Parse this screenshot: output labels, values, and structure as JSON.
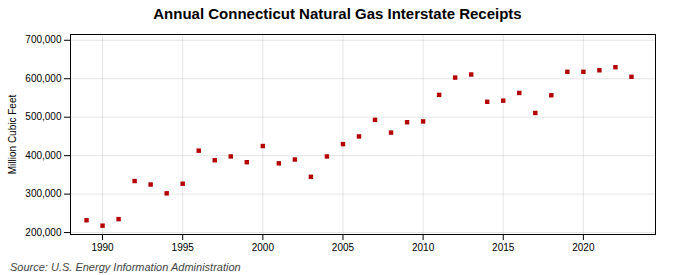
{
  "chart_data": {
    "type": "scatter",
    "title": "Annual Connecticut Natural Gas Interstate Receipts",
    "ylabel": "Million Cubic Feet",
    "annotations": [
      "Source: U.S. Energy Information Administration"
    ],
    "x": [
      1989,
      1990,
      1991,
      1992,
      1993,
      1994,
      1995,
      1996,
      1997,
      1998,
      1999,
      2000,
      2001,
      2002,
      2003,
      2004,
      2005,
      2006,
      2007,
      2008,
      2009,
      2010,
      2011,
      2012,
      2013,
      2014,
      2015,
      2016,
      2017,
      2018,
      2019,
      2020,
      2021,
      2022,
      2023
    ],
    "values": [
      232000,
      218000,
      235000,
      334000,
      325000,
      302000,
      327000,
      413000,
      388000,
      398000,
      383000,
      425000,
      380000,
      390000,
      345000,
      398000,
      430000,
      450000,
      493000,
      460000,
      487000,
      489000,
      558000,
      603000,
      611000,
      540000,
      543000,
      563000,
      511000,
      557000,
      618000,
      618000,
      622000,
      630000,
      605000
    ],
    "color": "#b30000",
    "marker": "square",
    "xlim": [
      1988.0,
      2024.5
    ],
    "xticks": [
      1990,
      1995,
      2000,
      2005,
      2010,
      2015,
      2020
    ],
    "ylim": [
      195000,
      715000
    ],
    "yticks": [
      {
        "value": 200000,
        "label": "200,000"
      },
      {
        "value": 300000,
        "label": "300,000"
      },
      {
        "value": 400000,
        "label": "400,000"
      },
      {
        "value": 500000,
        "label": "500,000"
      },
      {
        "value": 600000,
        "label": "600,000"
      },
      {
        "value": 700000,
        "label": "700,000"
      }
    ],
    "grid": true
  }
}
